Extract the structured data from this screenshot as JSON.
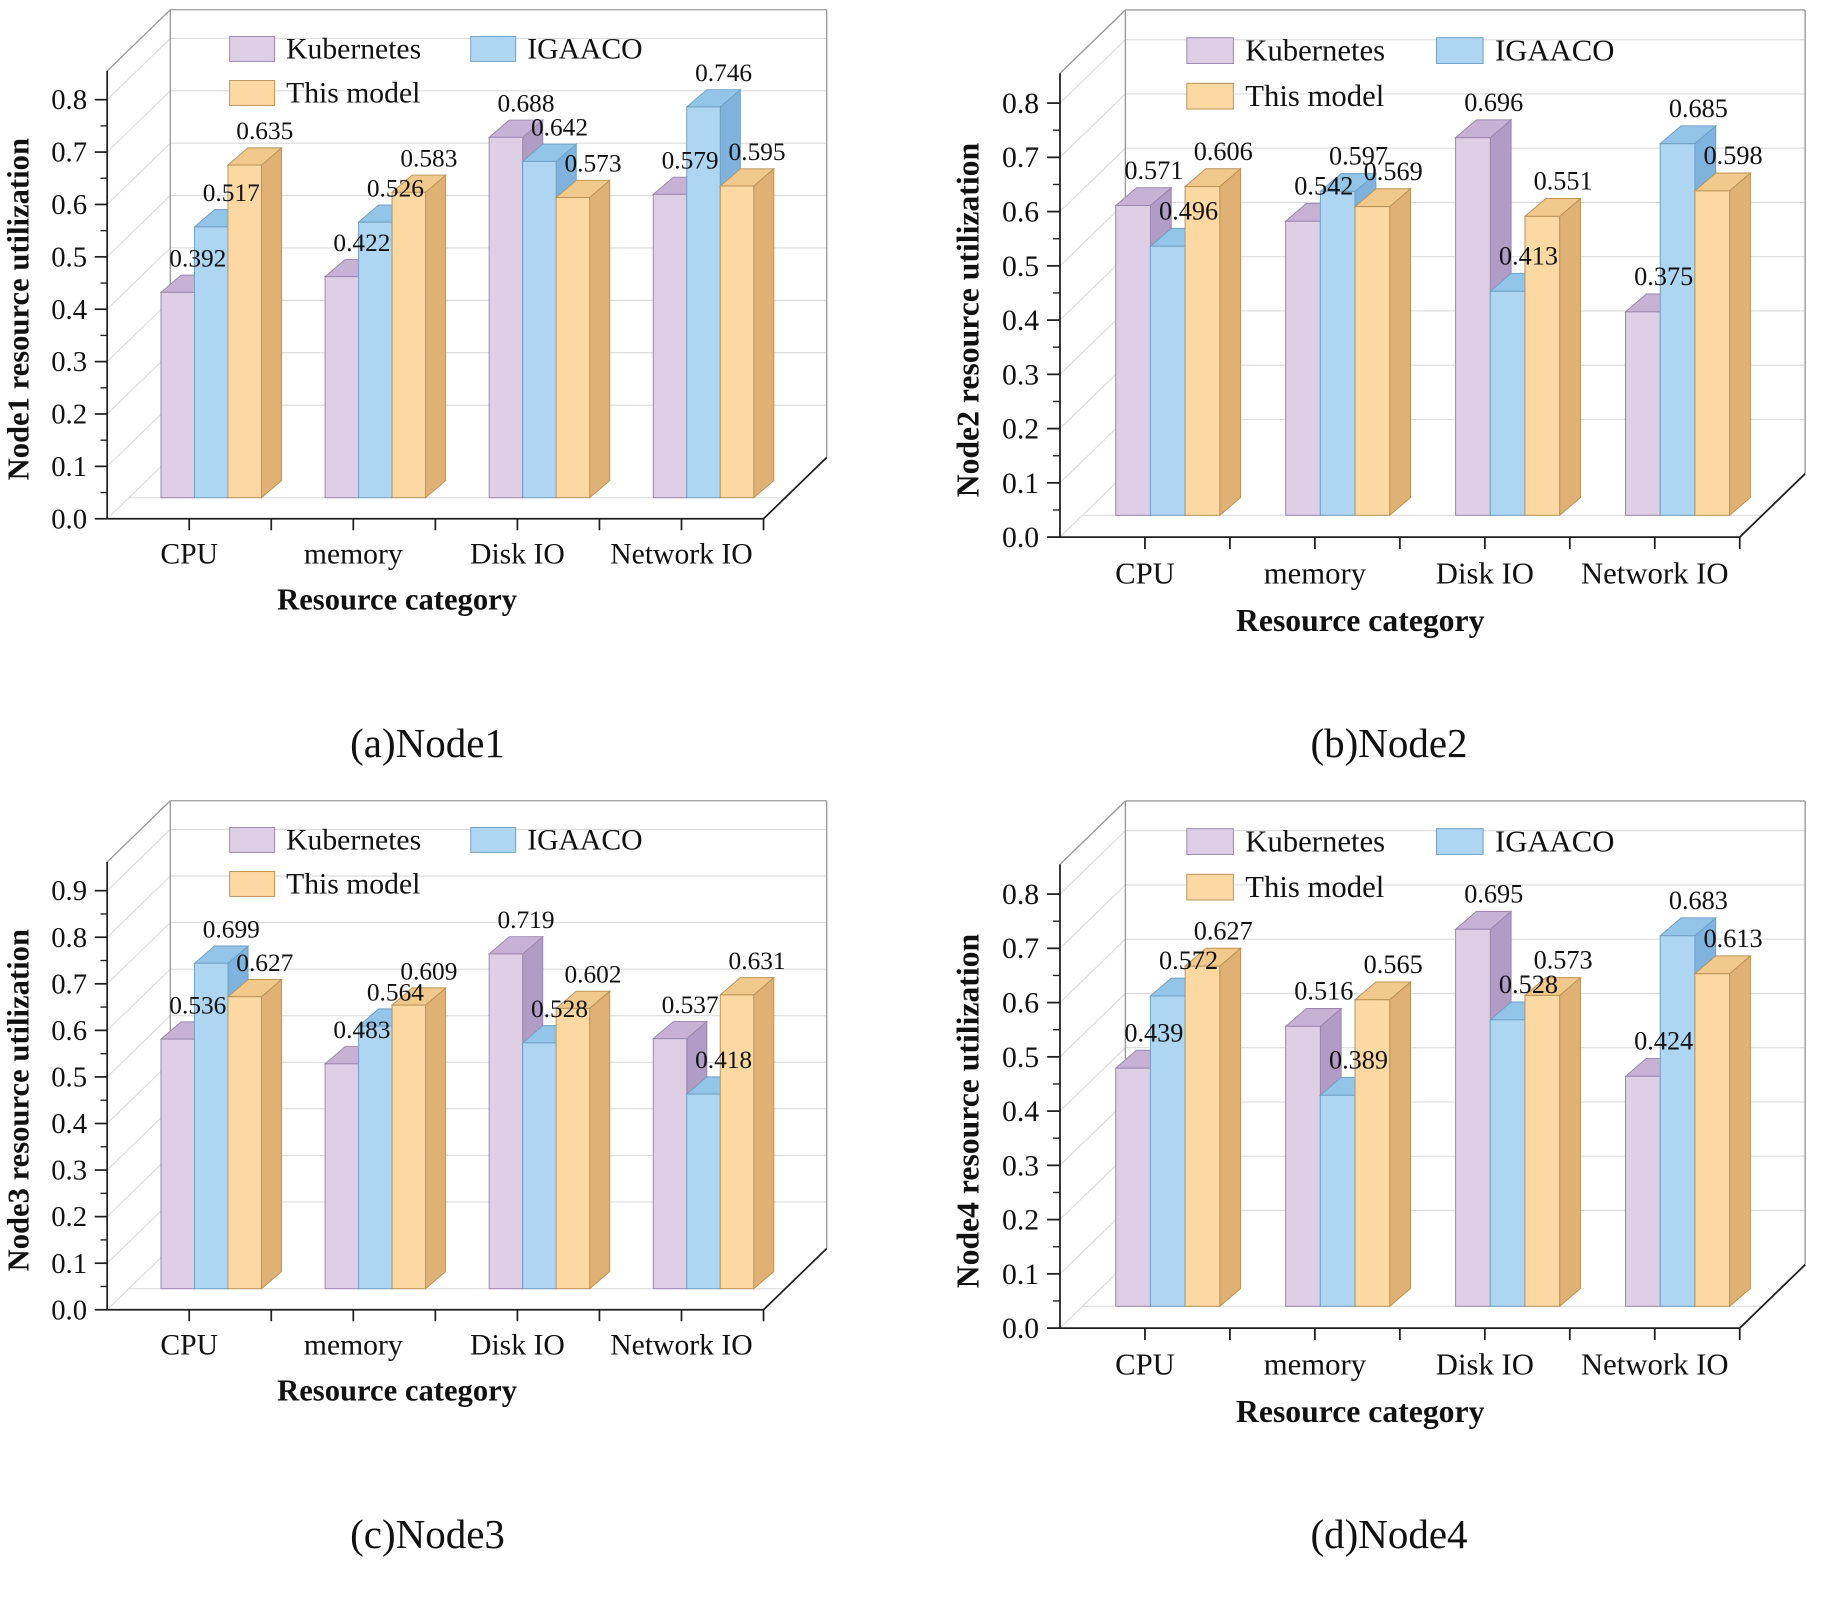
{
  "figure_title": "Node resource utilization comparison",
  "legend": [
    "Kubernetes",
    "IGAACO",
    "This model"
  ],
  "series_colors": [
    {
      "name": "Kubernetes",
      "front": "#decfe7",
      "top": "#c7b2d6",
      "side": "#b19cc5",
      "stroke": "#9a86ae"
    },
    {
      "name": "IGAACO",
      "front": "#aed6f2",
      "top": "#93c5e9",
      "side": "#7fb3dd",
      "stroke": "#6f9fc4"
    },
    {
      "name": "This model",
      "front": "#fcd9a3",
      "top": "#f2c98d",
      "side": "#dfb175",
      "stroke": "#bb9257"
    }
  ],
  "axis_colors": {
    "axis": "#1f1f1f",
    "frame": "#9a9a9a",
    "grid": "#dcdcdc",
    "text": "#111111"
  },
  "chart_data": [
    {
      "type": "bar",
      "title": "(a)Node1",
      "ylabel": "Node1 resource utilization",
      "xlabel": "Resource category",
      "categories": [
        "CPU",
        "memory",
        "Disk IO",
        "Network IO"
      ],
      "series": [
        {
          "name": "Kubernetes",
          "values": [
            0.392,
            0.422,
            0.688,
            0.579
          ]
        },
        {
          "name": "IGAACO",
          "values": [
            0.517,
            0.526,
            0.642,
            0.746
          ]
        },
        {
          "name": "This model",
          "values": [
            0.635,
            0.583,
            0.573,
            0.595
          ]
        }
      ],
      "ylim": [
        0.0,
        0.8
      ],
      "ytick_step": 0.1,
      "grid": true,
      "legend_position": "top-left-inside",
      "projection": "3d-bar"
    },
    {
      "type": "bar",
      "title": "(b)Node2",
      "ylabel": "Node2 resource utilization",
      "xlabel": "Resource category",
      "categories": [
        "CPU",
        "memory",
        "Disk IO",
        "Network IO"
      ],
      "series": [
        {
          "name": "Kubernetes",
          "values": [
            0.571,
            0.542,
            0.696,
            0.375
          ]
        },
        {
          "name": "IGAACO",
          "values": [
            0.496,
            0.597,
            0.413,
            0.685
          ]
        },
        {
          "name": "This model",
          "values": [
            0.606,
            0.569,
            0.551,
            0.598
          ]
        }
      ],
      "ylim": [
        0.0,
        0.8
      ],
      "ytick_step": 0.1,
      "grid": true,
      "legend_position": "top-left-inside",
      "projection": "3d-bar"
    },
    {
      "type": "bar",
      "title": "(c)Node3",
      "ylabel": "Node3 resource utilization",
      "xlabel": "Resource category",
      "categories": [
        "CPU",
        "memory",
        "Disk IO",
        "Network IO"
      ],
      "series": [
        {
          "name": "Kubernetes",
          "values": [
            0.536,
            0.483,
            0.719,
            0.537
          ]
        },
        {
          "name": "IGAACO",
          "values": [
            0.699,
            0.564,
            0.528,
            0.418
          ]
        },
        {
          "name": "This model",
          "values": [
            0.627,
            0.609,
            0.602,
            0.631
          ]
        }
      ],
      "ylim": [
        0.0,
        0.9
      ],
      "ytick_step": 0.1,
      "grid": true,
      "legend_position": "top-left-inside",
      "projection": "3d-bar"
    },
    {
      "type": "bar",
      "title": "(d)Node4",
      "ylabel": "Node4 resource utilization",
      "xlabel": "Resource category",
      "categories": [
        "CPU",
        "memory",
        "Disk IO",
        "Network IO"
      ],
      "series": [
        {
          "name": "Kubernetes",
          "values": [
            0.439,
            0.516,
            0.695,
            0.424
          ]
        },
        {
          "name": "IGAACO",
          "values": [
            0.572,
            0.389,
            0.528,
            0.683
          ]
        },
        {
          "name": "This model",
          "values": [
            0.627,
            0.565,
            0.573,
            0.613
          ]
        }
      ],
      "ylim": [
        0.0,
        0.8
      ],
      "ytick_step": 0.1,
      "grid": true,
      "legend_position": "top-left-inside",
      "projection": "3d-bar"
    }
  ]
}
